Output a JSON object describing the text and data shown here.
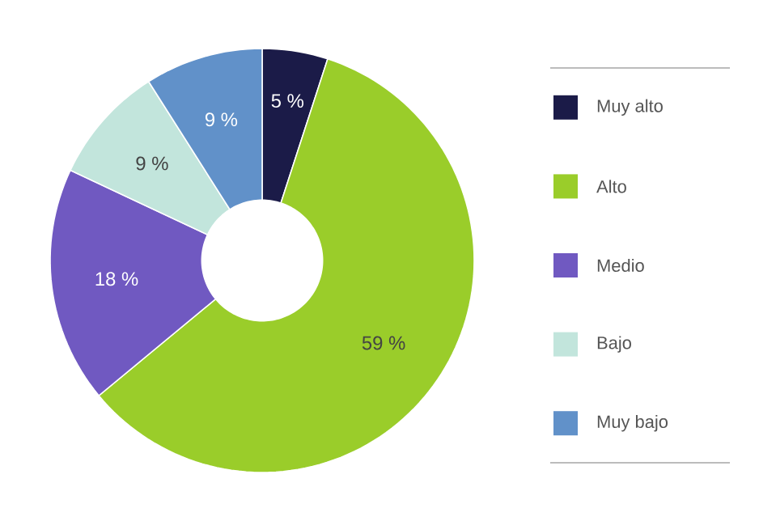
{
  "chart_data": {
    "type": "donut",
    "categories": [
      "Muy alto",
      "Alto",
      "Medio",
      "Bajo",
      "Muy bajo"
    ],
    "values": [
      5,
      59,
      18,
      9,
      9
    ],
    "value_labels": [
      "5 %",
      "59 %",
      "18 %",
      "9 %",
      "9 %"
    ],
    "colors": [
      "#1b1b48",
      "#9acd2a",
      "#7059c1",
      "#c2e5dc",
      "#6191c9"
    ],
    "legend": "right"
  }
}
